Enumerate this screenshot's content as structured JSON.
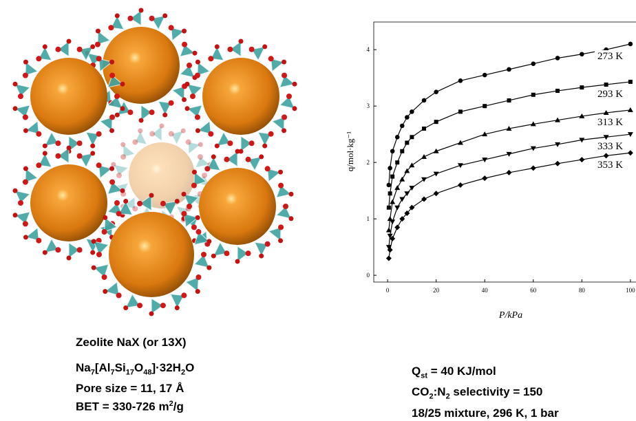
{
  "chart_data": {
    "type": "scatter-line",
    "x_label": "P/kPa",
    "y_label": "q/mol·kg⁻¹",
    "x": [
      0.5,
      1,
      2,
      4,
      6,
      8,
      10,
      15,
      20,
      30,
      40,
      50,
      60,
      70,
      80,
      90,
      100
    ],
    "series": [
      {
        "name": "273 K",
        "marker": "circle",
        "color": "#000000",
        "values": [
          1.6,
          1.9,
          2.2,
          2.45,
          2.65,
          2.8,
          2.9,
          3.1,
          3.25,
          3.45,
          3.55,
          3.65,
          3.75,
          3.85,
          3.92,
          4.0,
          4.1
        ]
      },
      {
        "name": "293 K",
        "marker": "square",
        "color": "#000000",
        "values": [
          1.2,
          1.45,
          1.75,
          2.0,
          2.2,
          2.35,
          2.45,
          2.6,
          2.72,
          2.9,
          3.0,
          3.1,
          3.2,
          3.27,
          3.33,
          3.38,
          3.43
        ]
      },
      {
        "name": "313 K",
        "marker": "triangle-up",
        "color": "#000000",
        "values": [
          0.8,
          1.0,
          1.3,
          1.55,
          1.7,
          1.85,
          1.95,
          2.1,
          2.2,
          2.35,
          2.5,
          2.6,
          2.68,
          2.75,
          2.82,
          2.88,
          2.93
        ]
      },
      {
        "name": "333 K",
        "marker": "triangle-down",
        "color": "#000000",
        "values": [
          0.5,
          0.7,
          0.95,
          1.2,
          1.35,
          1.45,
          1.55,
          1.7,
          1.8,
          1.95,
          2.05,
          2.15,
          2.25,
          2.32,
          2.4,
          2.45,
          2.5
        ]
      },
      {
        "name": "353 K",
        "marker": "diamond",
        "color": "#000000",
        "values": [
          0.3,
          0.45,
          0.65,
          0.85,
          1.0,
          1.1,
          1.2,
          1.35,
          1.45,
          1.6,
          1.72,
          1.82,
          1.9,
          1.98,
          2.05,
          2.12,
          2.17
        ]
      }
    ],
    "xlim": [
      -5.7,
      102.3
    ],
    "xticks": [
      0,
      20,
      40,
      60,
      80,
      100
    ],
    "ylim": [
      -0.12,
      4.49
    ],
    "yticks": [
      0,
      1,
      2,
      3,
      4
    ]
  },
  "left_caption": {
    "title": "Zeolite NaX (or 13X)",
    "lines": [
      [
        {
          "text": "Na"
        },
        {
          "sub": "7"
        },
        {
          "text": "[Al"
        },
        {
          "sub": "7"
        },
        {
          "text": "Si"
        },
        {
          "sub": "17"
        },
        {
          "text": "O"
        },
        {
          "sub": "48"
        },
        {
          "text": "]·32H"
        },
        {
          "sub": "2"
        },
        {
          "text": "O"
        }
      ],
      [
        {
          "text": "Pore size = 11, 17 Å"
        }
      ],
      [
        {
          "text": "BET = 330-726 m"
        },
        {
          "sup": "2"
        },
        {
          "text": "/g"
        }
      ]
    ]
  },
  "right_caption": {
    "lines": [
      [
        {
          "text": "Q"
        },
        {
          "sub": "st"
        },
        {
          "text": " = 40 KJ/mol"
        }
      ],
      [
        {
          "text": "CO"
        },
        {
          "sub": "2"
        },
        {
          "text": ":N"
        },
        {
          "sub": "2"
        },
        {
          "text": " selectivity = 150"
        }
      ],
      [
        {
          "text": "18/25 mixture, 296 K, 1 bar"
        }
      ]
    ]
  }
}
